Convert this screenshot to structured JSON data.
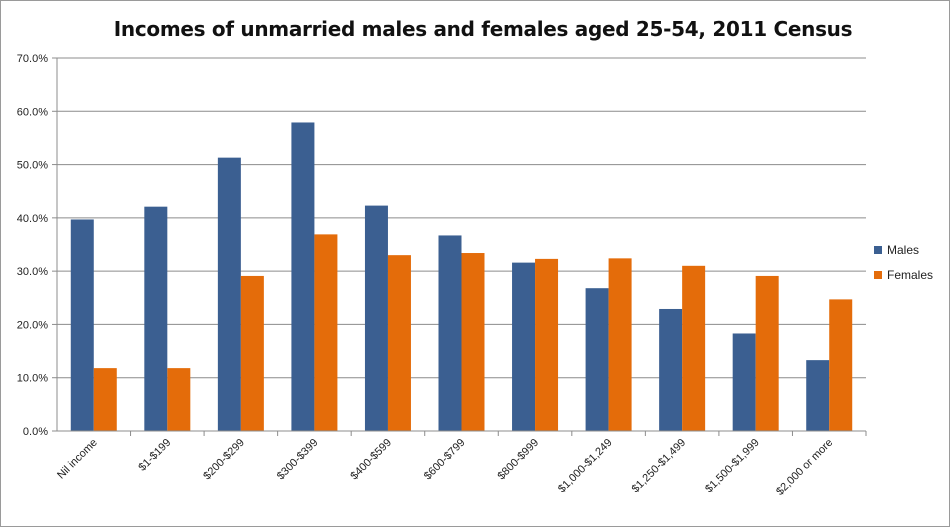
{
  "chart_data": {
    "type": "bar",
    "title": "Incomes of unmarried males and females aged 25-54, 2011 Census",
    "xlabel": "",
    "ylabel": "",
    "ylim": [
      0,
      70
    ],
    "y_tick_values": [
      0,
      10,
      20,
      30,
      40,
      50,
      60,
      70
    ],
    "y_tick_labels": [
      "0.0%",
      "10.0%",
      "20.0%",
      "30.0%",
      "40.0%",
      "50.0%",
      "60.0%",
      "70.0%"
    ],
    "grid": true,
    "legend_position": "right",
    "categories": [
      "Nil income",
      "$1-$199",
      "$200-$299",
      "$300-$399",
      "$400-$599",
      "$600-$799",
      "$800-$999",
      "$1,000-$1,249",
      "$1,250-$1,499",
      "$1,500-$1,999",
      "$2,000 or more"
    ],
    "series": [
      {
        "name": "Males",
        "color": "#3B5F91",
        "values": [
          39.7,
          42.1,
          51.3,
          57.9,
          42.3,
          36.7,
          31.6,
          26.8,
          22.9,
          18.3,
          13.3
        ]
      },
      {
        "name": "Females",
        "color": "#E46C0A",
        "values": [
          11.8,
          11.8,
          29.1,
          36.9,
          33.0,
          33.4,
          32.3,
          32.4,
          31.0,
          29.1,
          24.7
        ]
      }
    ]
  }
}
